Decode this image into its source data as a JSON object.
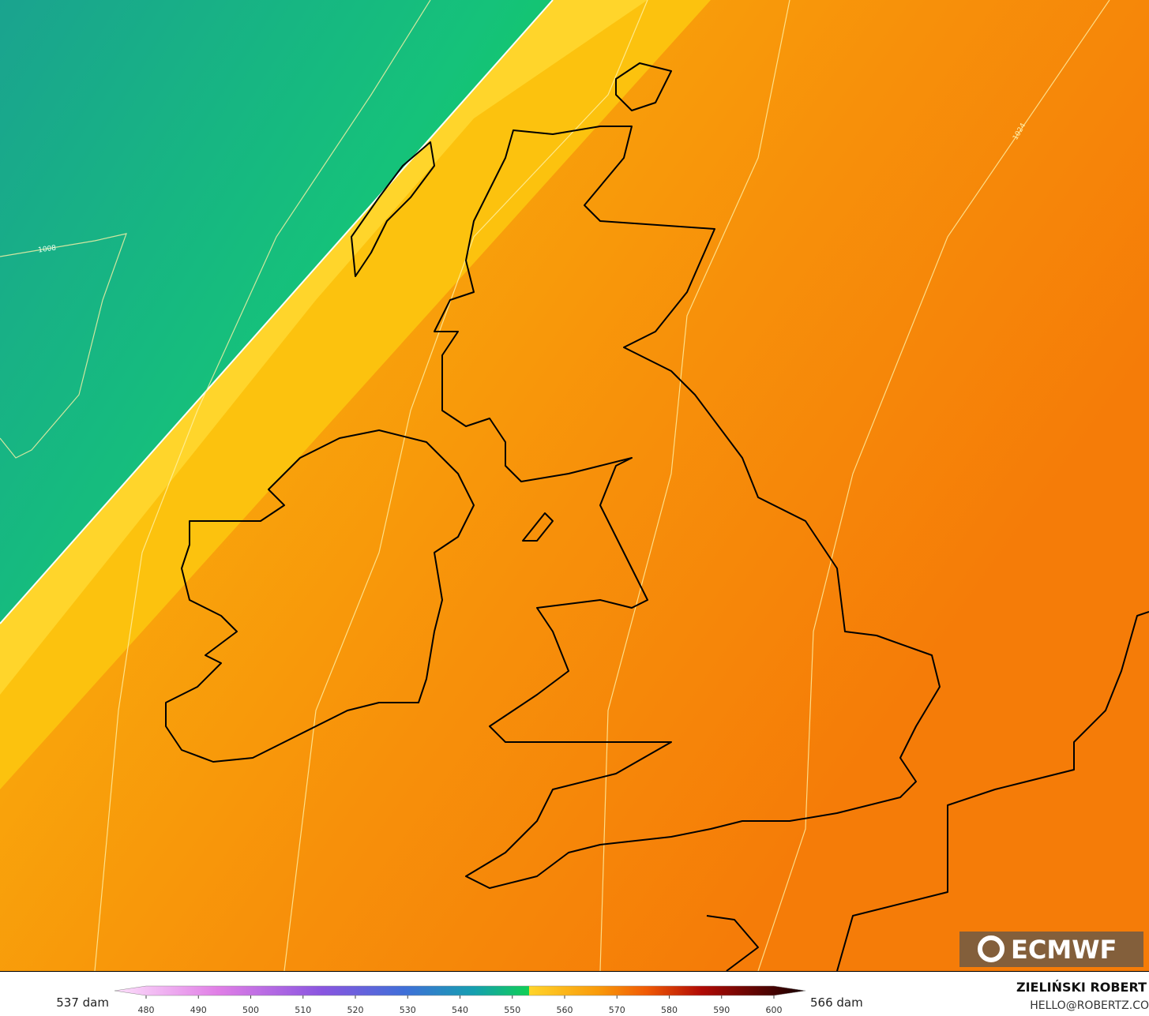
{
  "map": {
    "isobar_labels": [
      "1008",
      "1024"
    ],
    "logo": "ECMWF"
  },
  "colorbar": {
    "left_label": "537 dam",
    "right_label": "566 dam",
    "ticks": [
      480,
      490,
      500,
      510,
      520,
      530,
      540,
      550,
      560,
      570,
      580,
      590,
      600
    ]
  },
  "credit": {
    "name": "ZIELIŃSKI ROBERT",
    "email": "HELLO@ROBERTZ.CO"
  }
}
